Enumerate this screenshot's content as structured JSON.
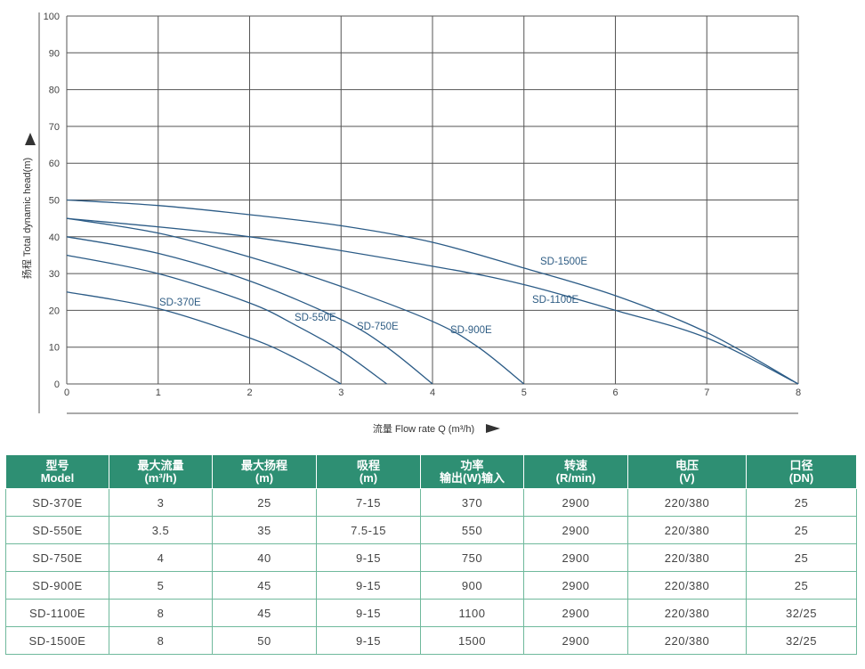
{
  "chart_data": {
    "type": "line",
    "xlabel": "流量 Flow rate Q (m³/h)",
    "ylabel": "扬程 Total dynamic head(m)",
    "xlim": [
      0,
      8
    ],
    "ylim": [
      0,
      100
    ],
    "x_ticks": [
      "0",
      "1",
      "2",
      "3",
      "4",
      "5",
      "6",
      "7",
      "8"
    ],
    "y_ticks": [
      "0",
      "10",
      "20",
      "30",
      "40",
      "50",
      "60",
      "70",
      "80",
      "90",
      "100"
    ],
    "grid": true,
    "series": [
      {
        "name": "SD-370E",
        "x": [
          0,
          1,
          2,
          2.5,
          3
        ],
        "y": [
          25,
          20.5,
          12.5,
          7,
          0
        ]
      },
      {
        "name": "SD-550E",
        "x": [
          0,
          1,
          2,
          2.5,
          3,
          3.5
        ],
        "y": [
          35,
          30,
          22,
          16,
          9,
          0
        ]
      },
      {
        "name": "SD-750E",
        "x": [
          0,
          1,
          2,
          3,
          3.5,
          4
        ],
        "y": [
          40,
          35.5,
          28,
          17.5,
          10,
          0
        ]
      },
      {
        "name": "SD-900E",
        "x": [
          0,
          1,
          2,
          3,
          4,
          4.5,
          5
        ],
        "y": [
          45,
          41,
          34.5,
          26.5,
          17,
          10,
          0
        ]
      },
      {
        "name": "SD-1100E",
        "x": [
          0,
          2,
          4,
          5,
          6,
          7,
          8
        ],
        "y": [
          45,
          40,
          32,
          27,
          20,
          12.5,
          0
        ]
      },
      {
        "name": "SD-1500E",
        "x": [
          0,
          1,
          2,
          3,
          4,
          5,
          6,
          7,
          8
        ],
        "y": [
          50,
          48.5,
          46,
          43,
          38.5,
          31.5,
          24,
          14,
          0
        ]
      }
    ],
    "labels": [
      {
        "text": "SD-370E",
        "series": "SD-370E"
      },
      {
        "text": "SD-550E",
        "series": "SD-550E"
      },
      {
        "text": "SD-750E",
        "series": "SD-750E"
      },
      {
        "text": "SD-900E",
        "series": "SD-900E"
      },
      {
        "text": "SD-1100E",
        "series": "SD-1100E"
      },
      {
        "text": "SD-1500E",
        "series": "SD-1500E"
      }
    ],
    "line_color": "#2b5b86"
  },
  "table": {
    "header_color": "#2e8f73",
    "columns": [
      [
        "型号",
        "Model"
      ],
      [
        "最大流量",
        "(m³/h)"
      ],
      [
        "最大扬程",
        "(m)"
      ],
      [
        "吸程",
        "(m)"
      ],
      [
        "功率",
        "输出(W)输入"
      ],
      [
        "转速",
        "(R/min)"
      ],
      [
        "电压",
        "(V)"
      ],
      [
        "口径",
        "(DN)"
      ]
    ],
    "rows": [
      [
        "SD-370E",
        "3",
        "25",
        "7-15",
        "370",
        "2900",
        "220/380",
        "25"
      ],
      [
        "SD-550E",
        "3.5",
        "35",
        "7.5-15",
        "550",
        "2900",
        "220/380",
        "25"
      ],
      [
        "SD-750E",
        "4",
        "40",
        "9-15",
        "750",
        "2900",
        "220/380",
        "25"
      ],
      [
        "SD-900E",
        "5",
        "45",
        "9-15",
        "900",
        "2900",
        "220/380",
        "25"
      ],
      [
        "SD-1100E",
        "8",
        "45",
        "9-15",
        "1100",
        "2900",
        "220/380",
        "32/25"
      ],
      [
        "SD-1500E",
        "8",
        "50",
        "9-15",
        "1500",
        "2900",
        "220/380",
        "32/25"
      ]
    ]
  }
}
